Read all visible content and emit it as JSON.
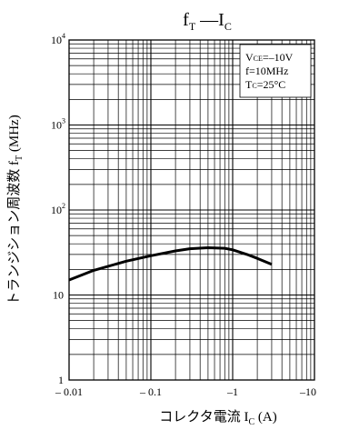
{
  "chart_data": {
    "type": "line",
    "title": {
      "main": "f",
      "main_sub": "T",
      "dash": " —",
      "second": "I",
      "second_sub": "C"
    },
    "xlabel": {
      "prefix": "コレクタ電流 ",
      "symbol": "I",
      "sub": "C",
      "unit": " (A)"
    },
    "ylabel": {
      "text": "トランジション周波数 ",
      "symbol": "f",
      "sub": "T",
      "unit": " (MHz)"
    },
    "x_scale": "log",
    "y_scale": "log",
    "xlim": [
      -0.01,
      -10
    ],
    "ylim": [
      1,
      10000
    ],
    "x_ticks": [
      {
        "value": -0.01,
        "label": "– 0.01"
      },
      {
        "value": -0.1,
        "label": "– 0.1"
      },
      {
        "value": -1,
        "label": "–1"
      },
      {
        "value": -10,
        "label": "–10"
      }
    ],
    "y_ticks": [
      {
        "value": 1,
        "label": "1"
      },
      {
        "value": 10,
        "label": "10"
      },
      {
        "value": 100,
        "base": "10",
        "exp": "2"
      },
      {
        "value": 1000,
        "base": "10",
        "exp": "3"
      },
      {
        "value": 10000,
        "base": "10",
        "exp": "4"
      }
    ],
    "grid": true,
    "annotation": {
      "vce_label": "V",
      "vce_sub": "CE",
      "vce_value": "=–10V",
      "freq": "f=10MHz",
      "tc_label": "T",
      "tc_sub": "C",
      "tc_value": "=25°C"
    },
    "series": [
      {
        "x": [
          -0.01,
          -0.02,
          -0.05,
          -0.1,
          -0.2,
          -0.3,
          -0.5,
          -0.8,
          -1,
          -1.5,
          -2,
          -3
        ],
        "y": [
          15,
          19.5,
          25,
          29,
          33,
          35,
          36,
          35.5,
          34,
          30,
          27,
          23
        ]
      }
    ]
  }
}
